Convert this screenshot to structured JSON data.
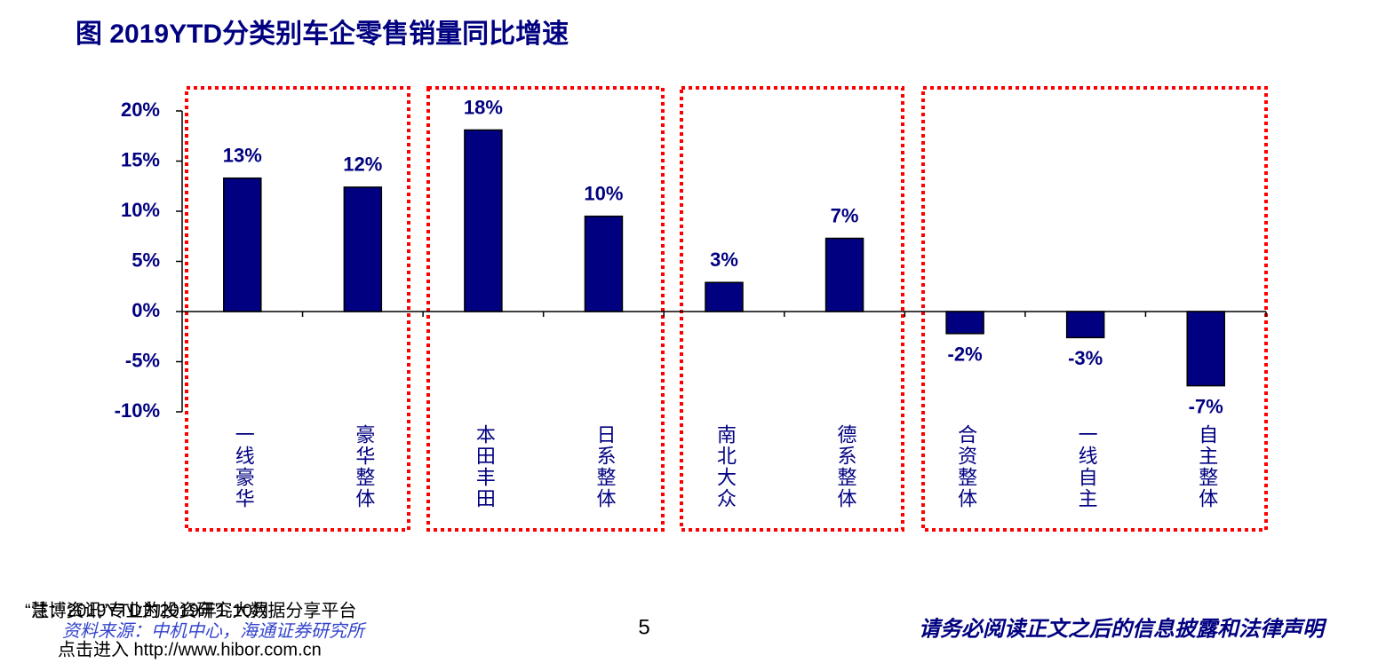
{
  "chart_data": {
    "type": "bar",
    "title": "图 2019YTD分类别车企零售销量同比增速",
    "categories": [
      "一线豪华",
      "豪华整体",
      "本田丰田",
      "日系整体",
      "南北大众",
      "德系整体",
      "合资整体",
      "一线自主",
      "自主整体"
    ],
    "values": [
      13.3,
      12.4,
      18.1,
      9.5,
      2.9,
      7.3,
      -2.2,
      -2.6,
      -7.4
    ],
    "value_labels": [
      "13%",
      "12%",
      "18%",
      "10%",
      "3%",
      "7%",
      "-2%",
      "-3%",
      "-7%"
    ],
    "color": "#000080",
    "ylim": [
      -10,
      20
    ],
    "yticks": [
      {
        "value": -10,
        "label": "-10%"
      },
      {
        "value": -5,
        "label": "-5%"
      },
      {
        "value": 0,
        "label": "0%"
      },
      {
        "value": 5,
        "label": "5%"
      },
      {
        "value": 10,
        "label": "10%"
      },
      {
        "value": 15,
        "label": "15%"
      },
      {
        "value": 20,
        "label": "20%"
      }
    ],
    "grid": false,
    "note": "注：2019YTD为2019年1-10月",
    "watermark": "“慧博资讯”专业的投资研究大数据分享平台",
    "source": "资料来源：中机中心，海通证券研究所",
    "watermark_link": "点击进入 http://www.hibor.com.cn",
    "page_number": "5",
    "disclaimer": "请务必阅读正文之后的信息披露和法律声明"
  }
}
